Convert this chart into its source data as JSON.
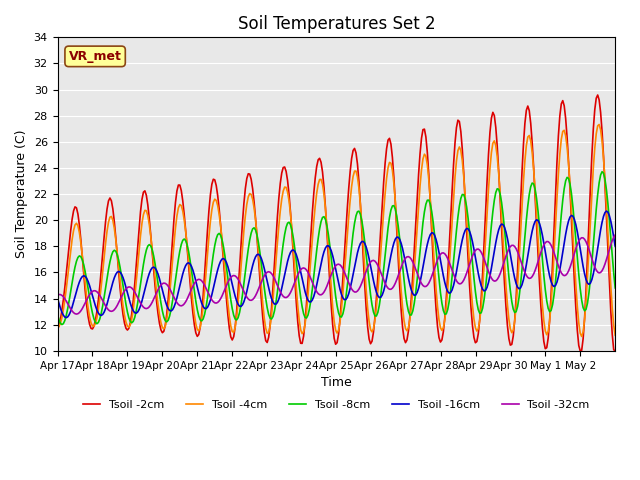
{
  "title": "Soil Temperatures Set 2",
  "xlabel": "Time",
  "ylabel": "Soil Temperature (C)",
  "ylim": [
    10,
    34
  ],
  "yticks": [
    10,
    12,
    14,
    16,
    18,
    20,
    22,
    24,
    26,
    28,
    30,
    32,
    34
  ],
  "bg_color": "#e8e8e8",
  "watermark": "VR_met",
  "series": [
    {
      "label": "Tsoil -2cm",
      "color": "#dd0000"
    },
    {
      "label": "Tsoil -4cm",
      "color": "#ff8800"
    },
    {
      "label": "Tsoil -8cm",
      "color": "#00cc00"
    },
    {
      "label": "Tsoil -16cm",
      "color": "#0000cc"
    },
    {
      "label": "Tsoil -32cm",
      "color": "#aa00aa"
    }
  ],
  "x_tick_labels": [
    "Apr 17",
    "Apr 18",
    "Apr 19",
    "Apr 20",
    "Apr 21",
    "Apr 22",
    "Apr 23",
    "Apr 24",
    "Apr 25",
    "Apr 26",
    "Apr 27",
    "Apr 28",
    "Apr 29",
    "Apr 30",
    "May 1",
    "May 2"
  ],
  "num_points": 384,
  "num_days": 16
}
